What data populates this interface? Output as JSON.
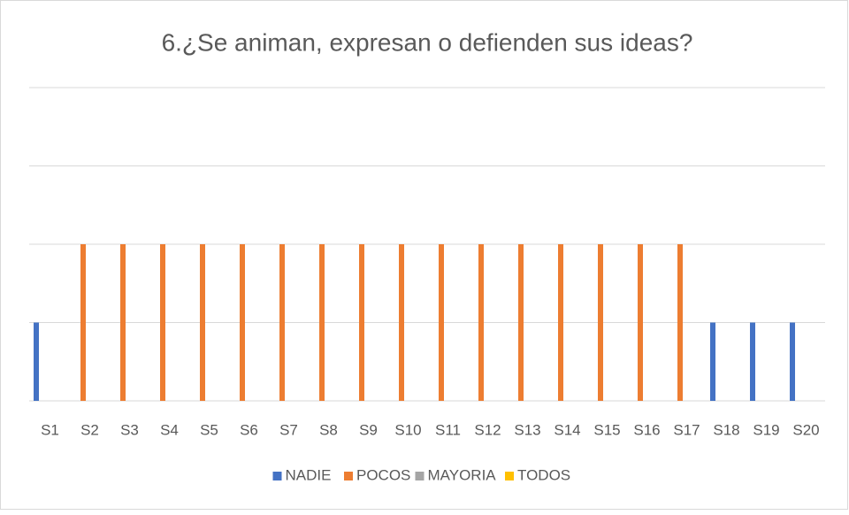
{
  "chart_data": {
    "type": "bar",
    "title": "6.¿Se animan, expresan o defienden sus ideas?",
    "categories": [
      "S1",
      "S2",
      "S3",
      "S4",
      "S5",
      "S6",
      "S7",
      "S8",
      "S9",
      "S10",
      "S11",
      "S12",
      "S13",
      "S14",
      "S15",
      "S16",
      "S17",
      "S18",
      "S19",
      "S20"
    ],
    "series": [
      {
        "name": "NADIE",
        "color": "#4472c4",
        "values": [
          1,
          null,
          null,
          null,
          null,
          null,
          null,
          null,
          null,
          null,
          null,
          null,
          null,
          null,
          null,
          null,
          null,
          1,
          1,
          1
        ]
      },
      {
        "name": "POCOS",
        "color": "#ed7d31",
        "values": [
          null,
          2,
          2,
          2,
          2,
          2,
          2,
          2,
          2,
          2,
          2,
          2,
          2,
          2,
          2,
          2,
          2,
          null,
          null,
          null
        ]
      },
      {
        "name": "MAYORIA",
        "color": "#a5a5a5",
        "values": [
          null,
          null,
          null,
          null,
          null,
          null,
          null,
          null,
          null,
          null,
          null,
          null,
          null,
          null,
          null,
          null,
          null,
          null,
          null,
          null
        ]
      },
      {
        "name": "TODOS",
        "color": "#ffc000",
        "values": [
          null,
          null,
          null,
          null,
          null,
          null,
          null,
          null,
          null,
          null,
          null,
          null,
          null,
          null,
          null,
          null,
          null,
          null,
          null,
          null
        ]
      }
    ],
    "ylim": [
      0,
      4
    ],
    "yticks": [
      0,
      1,
      2,
      3,
      4
    ],
    "tick_labels": false,
    "grid": true,
    "legend": "bottom"
  }
}
